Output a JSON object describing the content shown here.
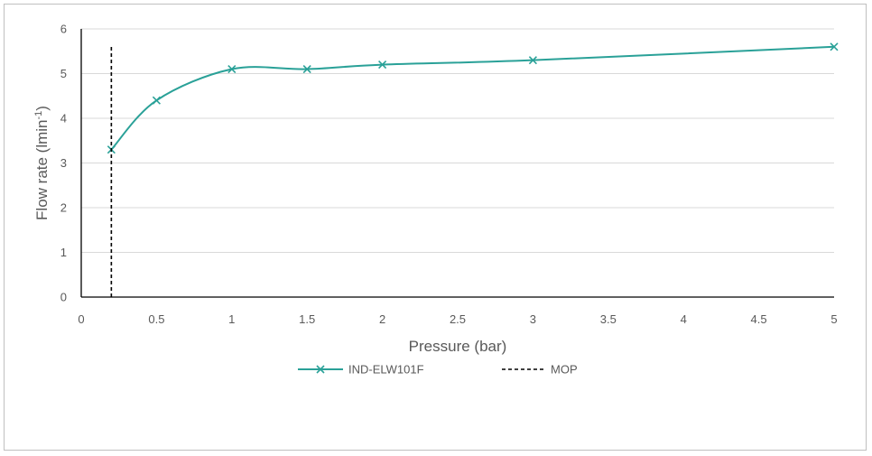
{
  "chart_data": {
    "type": "line",
    "xlabel": "Pressure (bar)",
    "ylabel_main": "Flow rate (lmin",
    "ylabel_sup": "-1",
    "ylabel_end": ")",
    "xlim": [
      0,
      5
    ],
    "ylim": [
      0,
      6
    ],
    "x_ticks": [
      0,
      0.5,
      1,
      1.5,
      2,
      2.5,
      3,
      3.5,
      4,
      4.5,
      5
    ],
    "y_ticks": [
      0,
      1,
      2,
      3,
      4,
      5,
      6
    ],
    "grid": "horizontal",
    "legend_position": "bottom",
    "series": [
      {
        "name": "IND-ELW101F",
        "color": "#2aa198",
        "marker": "x",
        "smooth": true,
        "x": [
          0.2,
          0.5,
          1,
          1.5,
          2,
          3,
          5
        ],
        "y": [
          3.3,
          4.4,
          5.1,
          5.1,
          5.2,
          5.3,
          5.6
        ]
      },
      {
        "name": "MOP",
        "color": "#000000",
        "style": "dashed",
        "x": [
          0.2,
          0.2
        ],
        "y": [
          0,
          5.6
        ]
      }
    ]
  }
}
